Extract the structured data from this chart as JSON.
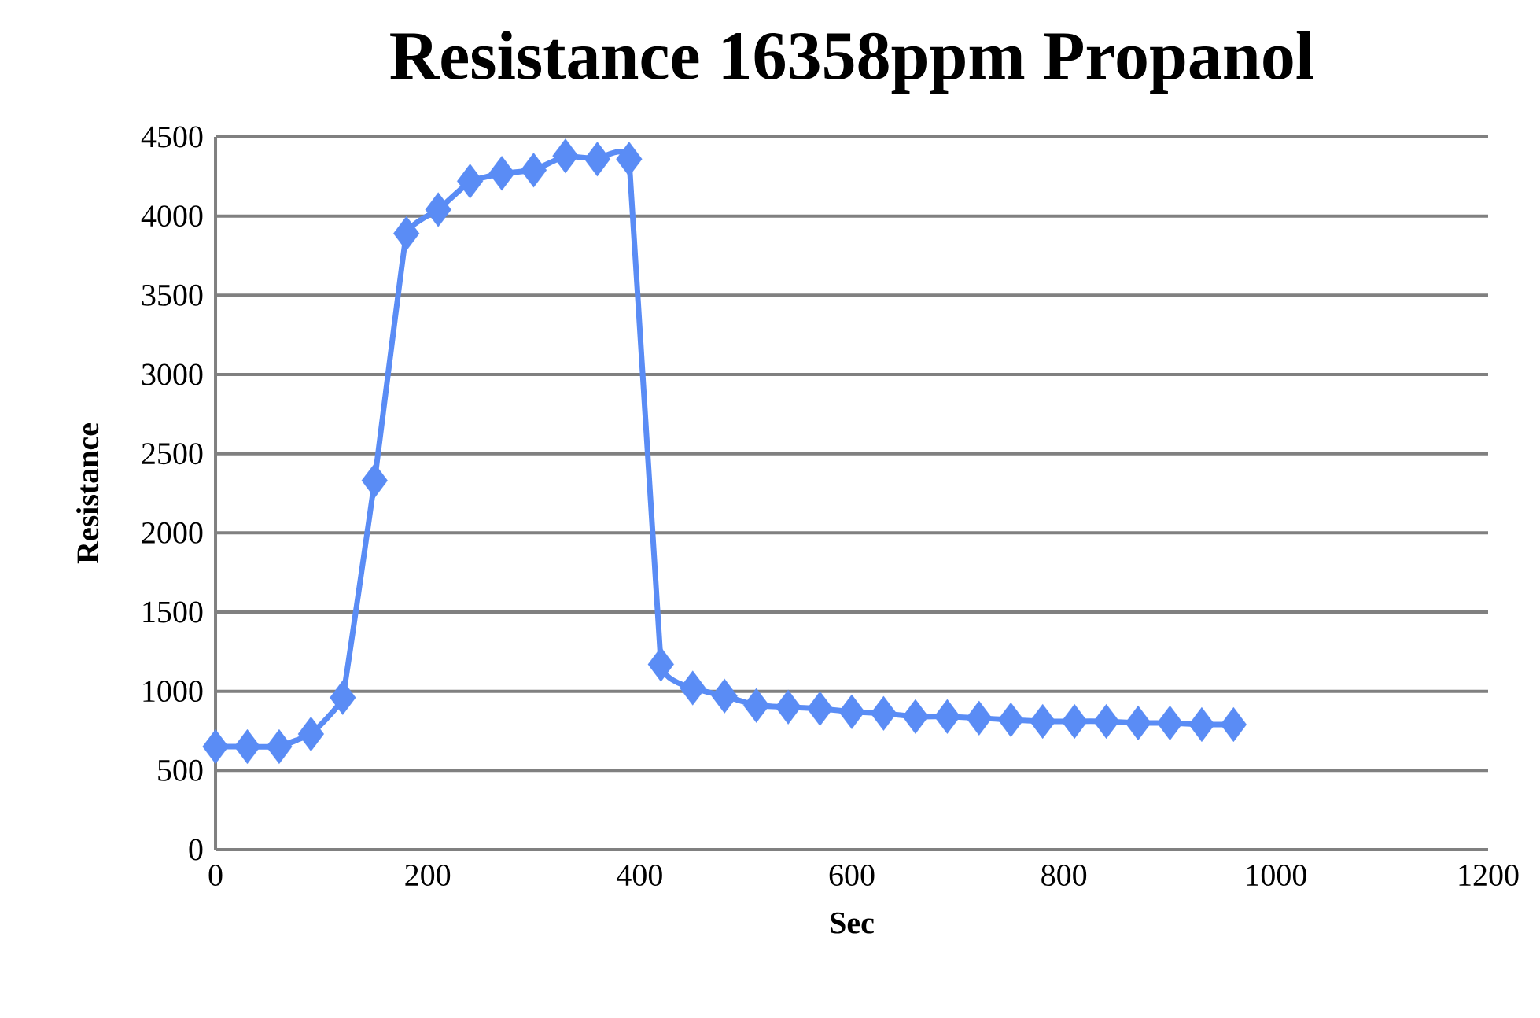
{
  "chart_data": {
    "type": "line",
    "title": "Resistance 16358ppm Propanol",
    "xlabel": "Sec",
    "ylabel": "Resistance",
    "x": [
      0,
      30,
      60,
      90,
      120,
      150,
      180,
      210,
      240,
      270,
      300,
      330,
      360,
      390,
      420,
      450,
      480,
      510,
      540,
      570,
      600,
      630,
      660,
      690,
      720,
      750,
      780,
      810,
      840,
      870,
      900,
      930,
      960
    ],
    "series": [
      {
        "color": "#5a8cf5",
        "values": [
          650,
          650,
          650,
          730,
          960,
          2330,
          3890,
          4040,
          4220,
          4270,
          4290,
          4380,
          4360,
          4360,
          1170,
          1020,
          970,
          910,
          900,
          890,
          870,
          860,
          840,
          840,
          830,
          820,
          810,
          810,
          810,
          800,
          800,
          790,
          790
        ]
      }
    ],
    "xlim": [
      0,
      1200
    ],
    "ylim": [
      0,
      4500
    ],
    "xticks": [
      0,
      200,
      400,
      600,
      800,
      1000,
      1200
    ],
    "yticks": [
      0,
      500,
      1000,
      1500,
      2000,
      2500,
      3000,
      3500,
      4000,
      4500
    ],
    "grid": "y",
    "marker": "diamond",
    "line_style": "solid"
  }
}
